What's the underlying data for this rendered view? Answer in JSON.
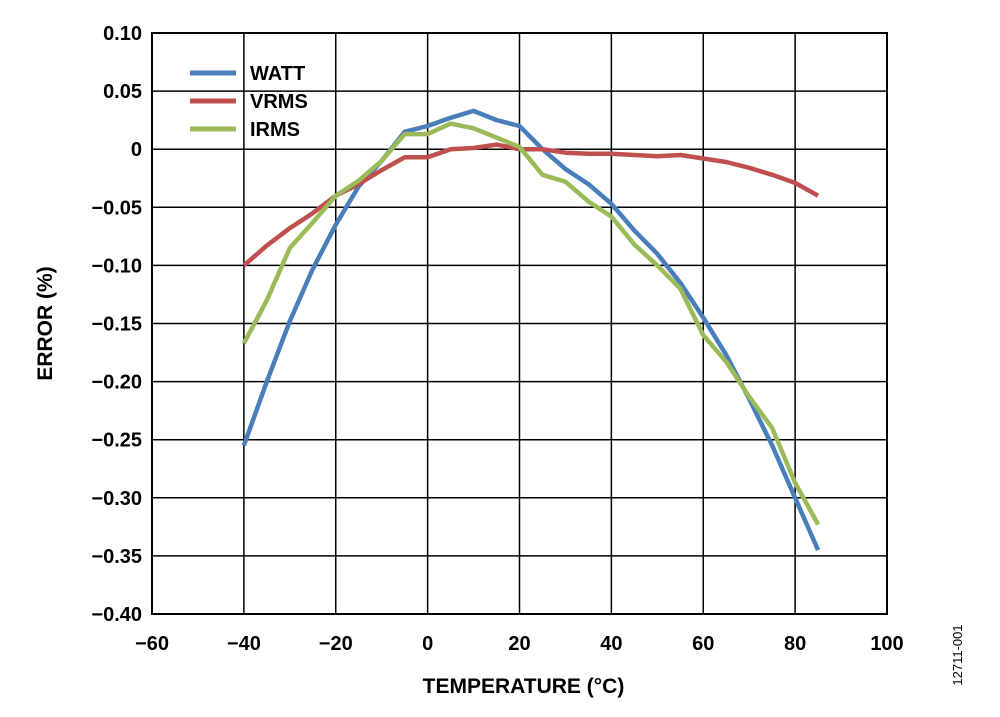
{
  "chart_data": {
    "type": "line",
    "xlabel": "TEMPERATURE (°C)",
    "ylabel": "ERROR (%)",
    "xlim": [
      -60,
      100
    ],
    "ylim": [
      -0.4,
      0.1
    ],
    "x_ticks": [
      -60,
      -40,
      -20,
      0,
      20,
      40,
      60,
      80,
      100
    ],
    "x_tick_labels": [
      "−60",
      "−40",
      "−20",
      "0",
      "20",
      "40",
      "60",
      "80",
      "100"
    ],
    "y_ticks": [
      0.1,
      0.05,
      0,
      -0.05,
      -0.1,
      -0.15,
      -0.2,
      -0.25,
      -0.3,
      -0.35,
      -0.4
    ],
    "y_tick_labels": [
      "0.10",
      "0.05",
      "0",
      "−0.05",
      "−0.10",
      "−0.15",
      "−0.20",
      "−0.25",
      "−0.30",
      "−0.35",
      "−0.40"
    ],
    "grid": true,
    "legend_position": "top-left",
    "series": [
      {
        "name": "WATT",
        "color": "#4a7ebb",
        "points": [
          [
            -40,
            -0.255
          ],
          [
            -35,
            -0.2
          ],
          [
            -30,
            -0.148
          ],
          [
            -25,
            -0.103
          ],
          [
            -20,
            -0.065
          ],
          [
            -15,
            -0.032
          ],
          [
            -10,
            -0.01
          ],
          [
            -5,
            0.015
          ],
          [
            0,
            0.02
          ],
          [
            5,
            0.027
          ],
          [
            10,
            0.033
          ],
          [
            15,
            0.025
          ],
          [
            20,
            0.02
          ],
          [
            25,
            0.0
          ],
          [
            30,
            -0.017
          ],
          [
            35,
            -0.03
          ],
          [
            40,
            -0.047
          ],
          [
            45,
            -0.07
          ],
          [
            50,
            -0.09
          ],
          [
            55,
            -0.115
          ],
          [
            60,
            -0.145
          ],
          [
            65,
            -0.177
          ],
          [
            70,
            -0.215
          ],
          [
            75,
            -0.255
          ],
          [
            80,
            -0.3
          ],
          [
            85,
            -0.345
          ]
        ]
      },
      {
        "name": "VRMS",
        "color": "#c0504d",
        "points": [
          [
            -40,
            -0.1
          ],
          [
            -35,
            -0.083
          ],
          [
            -30,
            -0.068
          ],
          [
            -25,
            -0.055
          ],
          [
            -20,
            -0.04
          ],
          [
            -15,
            -0.03
          ],
          [
            -10,
            -0.018
          ],
          [
            -5,
            -0.007
          ],
          [
            0,
            -0.007
          ],
          [
            5,
            0.0
          ],
          [
            10,
            0.001
          ],
          [
            15,
            0.004
          ],
          [
            20,
            0.0
          ],
          [
            25,
            0.0
          ],
          [
            30,
            -0.003
          ],
          [
            35,
            -0.004
          ],
          [
            40,
            -0.004
          ],
          [
            45,
            -0.005
          ],
          [
            50,
            -0.006
          ],
          [
            55,
            -0.005
          ],
          [
            60,
            -0.008
          ],
          [
            65,
            -0.011
          ],
          [
            70,
            -0.016
          ],
          [
            75,
            -0.022
          ],
          [
            80,
            -0.029
          ],
          [
            85,
            -0.04
          ]
        ]
      },
      {
        "name": "IRMS",
        "color": "#9bbb59",
        "points": [
          [
            -40,
            -0.167
          ],
          [
            -35,
            -0.13
          ],
          [
            -30,
            -0.085
          ],
          [
            -25,
            -0.063
          ],
          [
            -20,
            -0.04
          ],
          [
            -15,
            -0.027
          ],
          [
            -10,
            -0.01
          ],
          [
            -5,
            0.013
          ],
          [
            0,
            0.013
          ],
          [
            5,
            0.022
          ],
          [
            10,
            0.018
          ],
          [
            15,
            0.01
          ],
          [
            20,
            0.002
          ],
          [
            25,
            -0.022
          ],
          [
            30,
            -0.028
          ],
          [
            35,
            -0.045
          ],
          [
            40,
            -0.058
          ],
          [
            45,
            -0.082
          ],
          [
            50,
            -0.1
          ],
          [
            55,
            -0.12
          ],
          [
            60,
            -0.16
          ],
          [
            65,
            -0.183
          ],
          [
            70,
            -0.213
          ],
          [
            75,
            -0.24
          ],
          [
            80,
            -0.287
          ],
          [
            85,
            -0.323
          ]
        ]
      }
    ]
  },
  "figure_id": "12711-001"
}
